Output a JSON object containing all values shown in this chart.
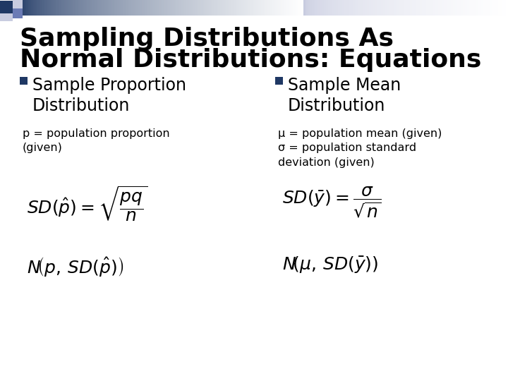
{
  "title_line1": "Sampling Distributions As",
  "title_line2": "Normal Distributions: Equations",
  "title_fontsize": 26,
  "title_color": "#000000",
  "background_color": "#ffffff",
  "bullet_color": "#1F3864",
  "bullet1_header": "Sample Proportion\nDistribution",
  "bullet2_header": "Sample Mean\nDistribution",
  "left_subtext": "p = population proportion\n(given)",
  "right_subtext": "μ = population mean (given)\nσ = population standard\ndeviation (given)",
  "header_fontsize": 17,
  "subtext_fontsize": 11.5,
  "eq_fontsize": 18,
  "corner_dark": "#1F3864",
  "corner_mid": "#6B7BB5",
  "corner_light": "#C8CCE0"
}
